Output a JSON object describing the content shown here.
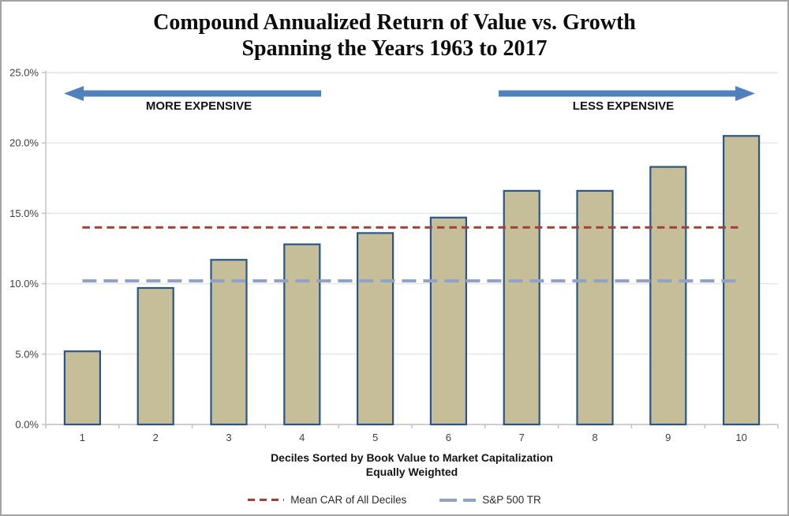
{
  "title": {
    "line1": "Compound Annualized Return of Value vs. Growth",
    "line2": "Spanning the Years 1963 to 2017"
  },
  "annotations": {
    "left_arrow_label": "MORE EXPENSIVE",
    "right_arrow_label": "LESS EXPENSIVE"
  },
  "chart_data": {
    "type": "bar",
    "title": "Compound Annualized Return of Value vs. Growth Spanning the Years 1963 to 2017",
    "categories": [
      "1",
      "2",
      "3",
      "4",
      "5",
      "6",
      "7",
      "8",
      "9",
      "10"
    ],
    "values": [
      5.2,
      9.7,
      11.7,
      12.8,
      13.6,
      14.7,
      16.6,
      16.6,
      18.3,
      20.5
    ],
    "xlabel_line1": "Deciles Sorted by Book Value to Market Capitalization",
    "xlabel_line2": "Equally Weighted",
    "ylabel": "",
    "ylim": [
      0,
      25
    ],
    "y_ticks": [
      {
        "value": 0,
        "label": "0.0%"
      },
      {
        "value": 5,
        "label": "5.0%"
      },
      {
        "value": 10,
        "label": "10.0%"
      },
      {
        "value": 15,
        "label": "15.0%"
      },
      {
        "value": 20,
        "label": "20.0%"
      },
      {
        "value": 25,
        "label": "25.0%"
      }
    ],
    "grid": "horizontal",
    "legend_position": "bottom",
    "ref_lines": [
      {
        "name": "Mean CAR of All Deciles",
        "value": 14.0,
        "color": "#9E4038",
        "dash": "9.5 6",
        "width": 3
      },
      {
        "name": "S&P 500 TR",
        "value": 10.2,
        "color": "#92A3C2",
        "dash": "18 9",
        "width": 4
      }
    ],
    "colors": {
      "bar_fill": "#C5BE99",
      "bar_border": "#2A5585",
      "arrow": "#4F81BD",
      "gridline": "#E4E4E4",
      "axis": "#BFBFBF",
      "tick_text": "#404040"
    }
  }
}
